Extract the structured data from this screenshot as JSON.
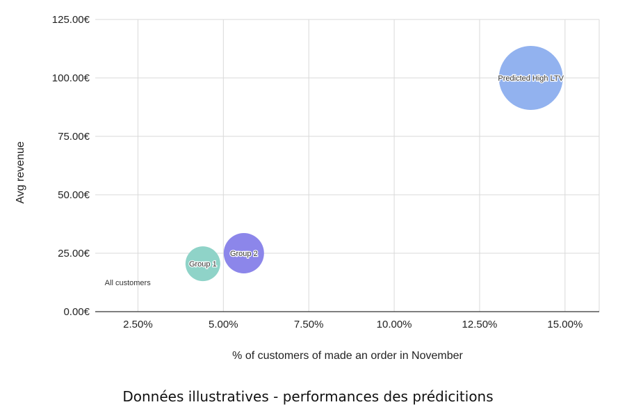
{
  "caption": "Données illustratives - performances des prédicitions",
  "chart_data": {
    "type": "bubble",
    "xlabel": "% of customers of made an order in November",
    "ylabel": "Avg revenue",
    "xlim": [
      1.25,
      16.0
    ],
    "ylim": [
      0,
      125
    ],
    "x_ticks": [
      2.5,
      5.0,
      7.5,
      10.0,
      12.5,
      15.0
    ],
    "x_tick_labels": [
      "2.50%",
      "5.00%",
      "7.50%",
      "10.00%",
      "12.50%",
      "15.00%"
    ],
    "y_ticks": [
      0,
      25,
      50,
      75,
      100,
      125
    ],
    "y_tick_labels": [
      "0.00€",
      "25.00€",
      "50.00€",
      "75.00€",
      "100.00€",
      "125.00€"
    ],
    "grid": true,
    "points": [
      {
        "label": "All customers",
        "x": 2.2,
        "y": 12.5,
        "size": 0,
        "color": "#ffffff"
      },
      {
        "label": "Group 1",
        "x": 4.4,
        "y": 20.5,
        "size": 25,
        "color": "#8fd3c8"
      },
      {
        "label": "Group 2",
        "x": 5.6,
        "y": 25,
        "size": 29,
        "color": "#8c86ea"
      },
      {
        "label": "Predicted High LTV",
        "x": 14.0,
        "y": 100,
        "size": 46,
        "color": "#92b2ef"
      }
    ]
  }
}
